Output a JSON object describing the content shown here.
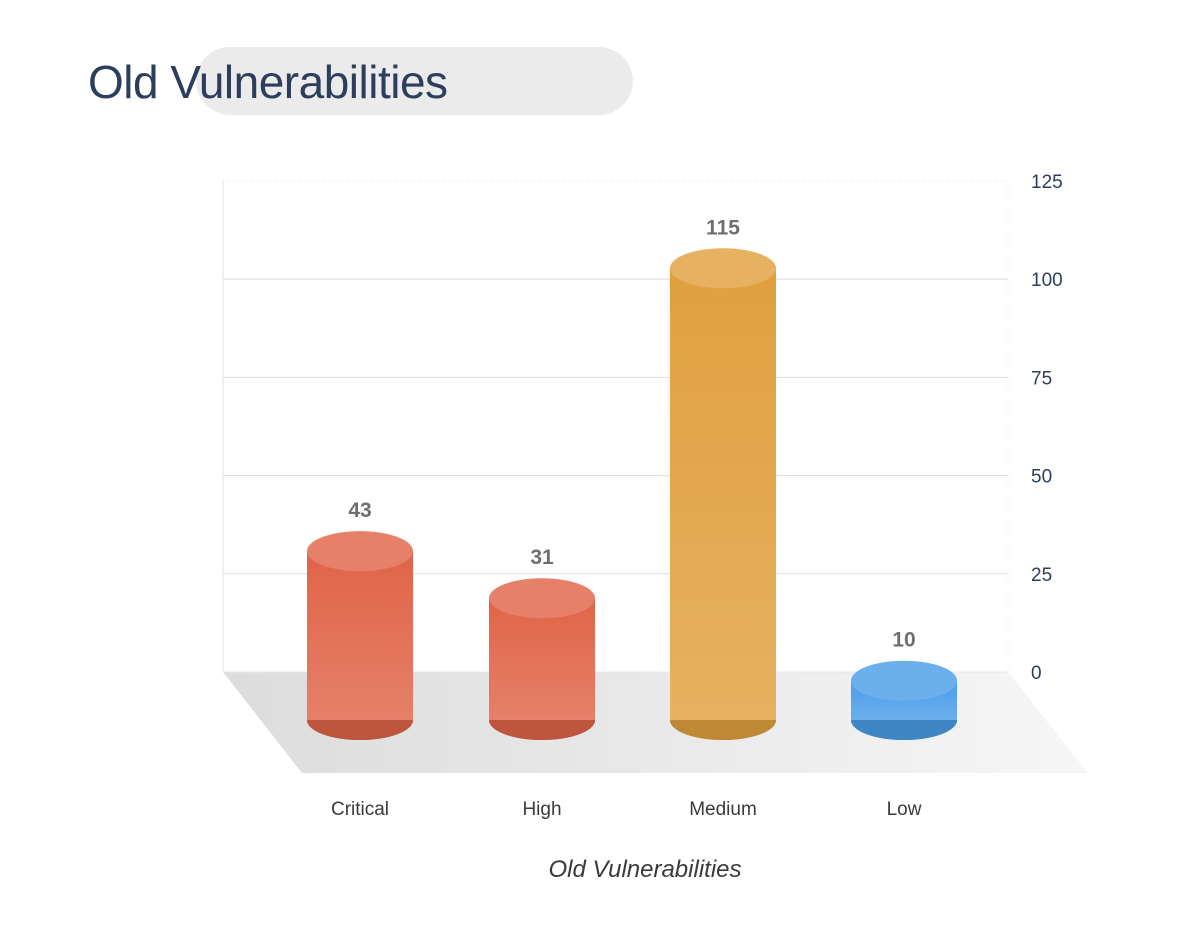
{
  "header": {
    "title": "Old Vulnerabilities"
  },
  "chart_data": {
    "type": "bar",
    "categories": [
      "Critical",
      "High",
      "Medium",
      "Low"
    ],
    "values": [
      43,
      31,
      115,
      10
    ],
    "colors": {
      "Critical": "#e06448",
      "High": "#e06448",
      "Medium": "#e0a03e",
      "Low": "#4a9ee8"
    },
    "title": "",
    "xlabel": "Old Vulnerabilities",
    "ylabel": "",
    "ylim": [
      0,
      125
    ],
    "yticks": [
      0,
      25,
      50,
      75,
      100,
      125
    ],
    "y_axis_side": "right",
    "grid": true,
    "data_labels": true,
    "style": "3d-cylinder"
  }
}
